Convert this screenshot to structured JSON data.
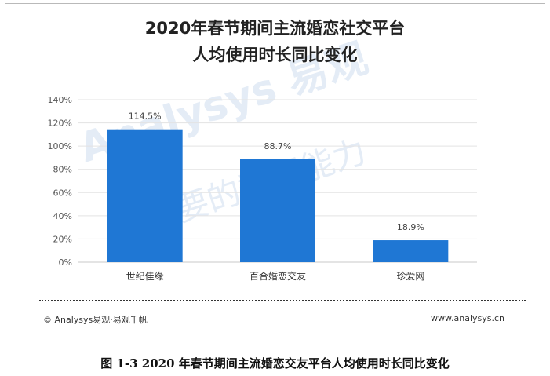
{
  "chart_data": {
    "type": "bar",
    "title_line1": "2020年春节期间主流婚恋社交平台",
    "title_line2": "人均使用时长同比变化",
    "categories": [
      "世纪佳缘",
      "百合婚恋交友",
      "珍爱网"
    ],
    "values": [
      114.5,
      88.7,
      18.9
    ],
    "value_labels": [
      "114.5%",
      "88.7%",
      "18.9%"
    ],
    "y_ticks": [
      "0%",
      "20%",
      "40%",
      "60%",
      "80%",
      "100%",
      "120%",
      "140%"
    ],
    "ylim": [
      0,
      140
    ],
    "grid": true,
    "bar_color": "#1f77d4"
  },
  "footer": {
    "source": "© Analysys易观·易观千帆",
    "site": "www.analysys.cn"
  },
  "caption": "图 1-3  2020 年春节期间主流婚恋交友平台人均使用时长同比变化",
  "watermark": {
    "brand": "Analysys 易观",
    "slogan": "你要的数据能力"
  }
}
